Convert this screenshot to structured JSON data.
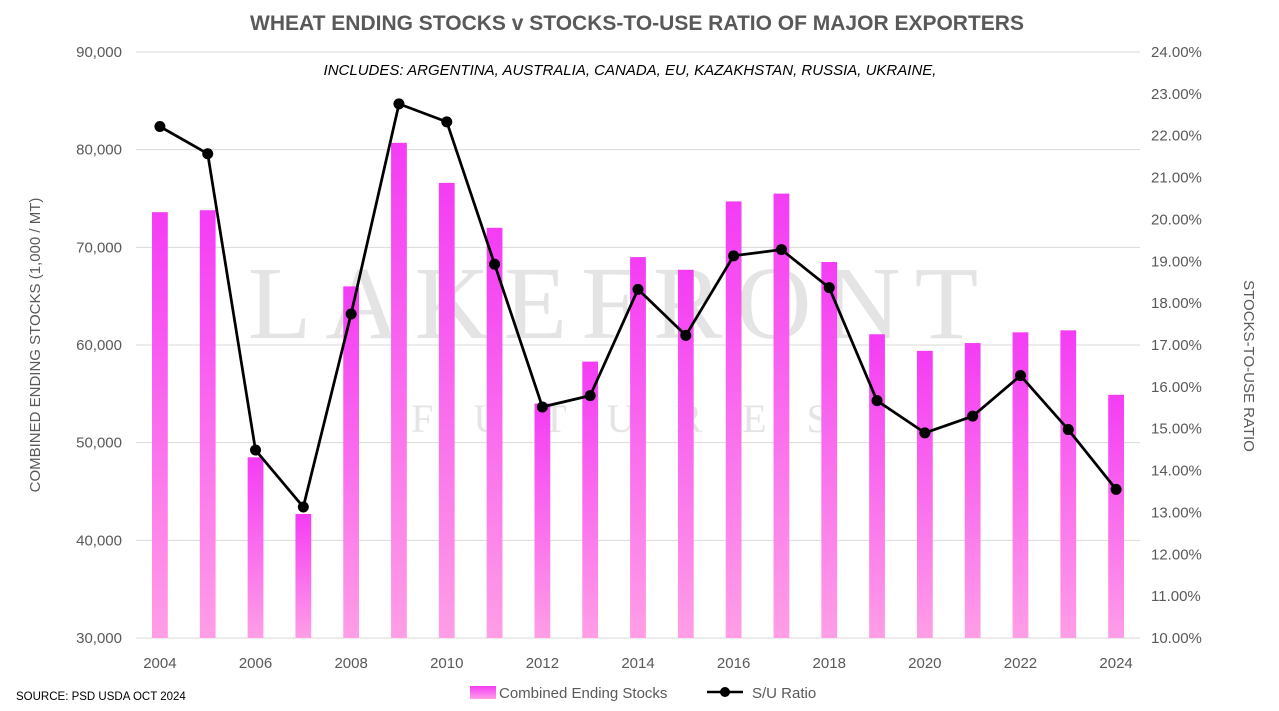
{
  "watermark": {
    "main": "LAKEFRONT",
    "sub": "FUTURES"
  },
  "source_note": "SOURCE: PSD USDA OCT 2024",
  "colors": {
    "bar_top": "#f43cf4",
    "bar_bottom": "#ff9ee6",
    "line": "#000000",
    "grid": "#d9d9d9",
    "text": "#595959"
  },
  "chart_data": {
    "type": "bar+line",
    "title": "WHEAT ENDING STOCKS v STOCKS-TO-USE RATIO OF MAJOR EXPORTERS",
    "subtitle": "INCLUDES: ARGENTINA, AUSTRALIA, CANADA, EU, KAZAKHSTAN, RUSSIA, UKRAINE,",
    "categories": [
      "2004",
      "2005",
      "2006",
      "2007",
      "2008",
      "2009",
      "2010",
      "2011",
      "2012",
      "2013",
      "2014",
      "2015",
      "2016",
      "2017",
      "2018",
      "2019",
      "2020",
      "2021",
      "2022",
      "2023",
      "2024"
    ],
    "x_tick_labels": [
      "2004",
      "2006",
      "2008",
      "2010",
      "2012",
      "2014",
      "2016",
      "2018",
      "2020",
      "2022",
      "2024"
    ],
    "ylabel_left": "COMBINED ENDING STOCKS (1,000 / MT)",
    "ylabel_right": "STOCKS-TO-USE RATIO",
    "ylim_left": [
      30000,
      90000
    ],
    "ylim_right": [
      0.1,
      0.24
    ],
    "y_ticks_left": [
      "30,000",
      "40,000",
      "50,000",
      "60,000",
      "70,000",
      "80,000",
      "90,000"
    ],
    "y_ticks_right": [
      "10.00%",
      "11.00%",
      "12.00%",
      "13.00%",
      "14.00%",
      "15.00%",
      "16.00%",
      "17.00%",
      "18.00%",
      "19.00%",
      "20.00%",
      "21.00%",
      "22.00%",
      "23.00%",
      "24.00%"
    ],
    "grid": true,
    "legend_position": "bottom",
    "series": [
      {
        "name": "Combined Ending Stocks",
        "type": "bar",
        "axis": "left",
        "values": [
          73600,
          73800,
          48500,
          42700,
          66000,
          80700,
          76600,
          72000,
          54000,
          58300,
          69000,
          67700,
          74700,
          75500,
          68500,
          61100,
          59400,
          60200,
          61300,
          61500,
          54900
        ]
      },
      {
        "name": "S/U Ratio",
        "type": "line",
        "axis": "right",
        "values": [
          0.2222,
          0.2157,
          0.1449,
          0.1313,
          0.1774,
          0.2276,
          0.2233,
          0.1893,
          0.1552,
          0.1579,
          0.1833,
          0.1723,
          0.1913,
          0.1928,
          0.1837,
          0.1567,
          0.149,
          0.153,
          0.1627,
          0.1498,
          0.1355
        ]
      }
    ]
  }
}
